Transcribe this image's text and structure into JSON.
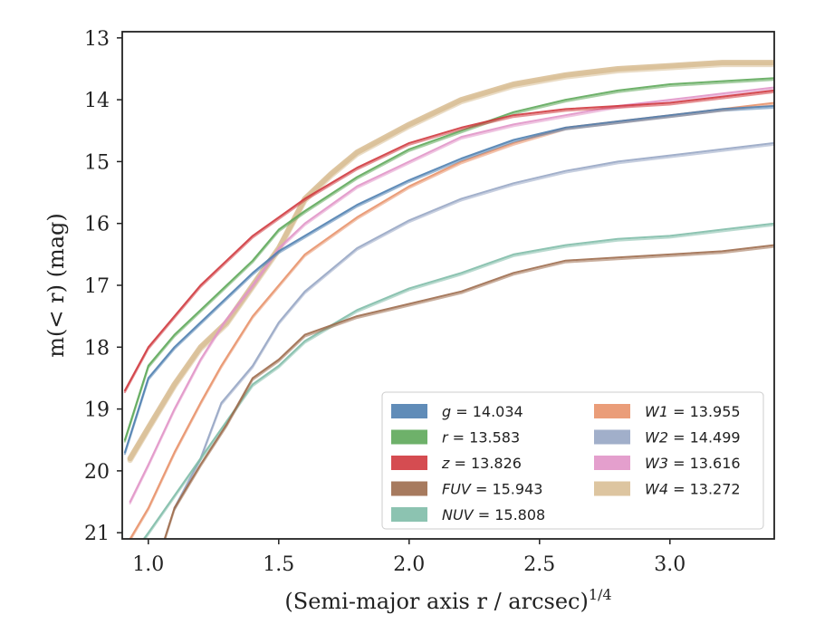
{
  "chart_data": {
    "type": "line",
    "xlabel": "(Semi-major axis r / arcsec)",
    "xlabel_sup": "1/4",
    "ylabel": "m(< r) (mag)",
    "xlim": [
      0.9,
      3.4
    ],
    "ylim": [
      21.1,
      12.9
    ],
    "y_inverted": true,
    "grid": false,
    "xticks": [
      {
        "value": 1.0,
        "label": "1.0"
      },
      {
        "value": 1.5,
        "label": "1.5"
      },
      {
        "value": 2.0,
        "label": "2.0"
      },
      {
        "value": 2.5,
        "label": "2.5"
      },
      {
        "value": 3.0,
        "label": "3.0"
      }
    ],
    "yticks": [
      {
        "value": 13,
        "label": "13"
      },
      {
        "value": 14,
        "label": "14"
      },
      {
        "value": 15,
        "label": "15"
      },
      {
        "value": 16,
        "label": "16"
      },
      {
        "value": 17,
        "label": "17"
      },
      {
        "value": 18,
        "label": "18"
      },
      {
        "value": 19,
        "label": "19"
      },
      {
        "value": 20,
        "label": "20"
      },
      {
        "value": 21,
        "label": "21"
      }
    ],
    "legend_position": "lower-right",
    "legend_columns": [
      [
        {
          "key": "g",
          "label": "g = 14.034"
        },
        {
          "key": "r",
          "label": "r = 13.583"
        },
        {
          "key": "z",
          "label": "z = 13.826"
        },
        {
          "key": "FUV",
          "label": "FUV = 15.943"
        },
        {
          "key": "NUV",
          "label": "NUV = 15.808"
        }
      ],
      [
        {
          "key": "W1",
          "label": "W1 = 13.955"
        },
        {
          "key": "W2",
          "label": "W2 = 14.499"
        },
        {
          "key": "W3",
          "label": "W3 = 13.616"
        },
        {
          "key": "W4",
          "label": "W4 = 13.272"
        }
      ]
    ],
    "series": [
      {
        "key": "W4",
        "color": "#d9bf96",
        "x": [
          0.93,
          1.0,
          1.1,
          1.2,
          1.3,
          1.4,
          1.5,
          1.6,
          1.7,
          1.8,
          2.0,
          2.2,
          2.4,
          2.6,
          2.8,
          3.0,
          3.2,
          3.4
        ],
        "y": [
          19.8,
          19.3,
          18.6,
          18.0,
          17.6,
          17.0,
          16.4,
          15.6,
          15.2,
          14.85,
          14.4,
          14.0,
          13.75,
          13.6,
          13.5,
          13.45,
          13.4,
          13.4
        ]
      },
      {
        "key": "W3",
        "color": "#e195c8",
        "x": [
          0.93,
          1.0,
          1.1,
          1.2,
          1.29,
          1.4,
          1.5,
          1.6,
          1.8,
          2.0,
          2.2,
          2.4,
          2.6,
          2.8,
          3.0,
          3.2,
          3.4
        ],
        "y": [
          20.5,
          19.9,
          19.0,
          18.2,
          17.6,
          17.0,
          16.4,
          16.0,
          15.4,
          15.0,
          14.6,
          14.4,
          14.25,
          14.1,
          14.0,
          13.9,
          13.8
        ]
      },
      {
        "key": "W1",
        "color": "#e8926a",
        "x": [
          0.93,
          1.0,
          1.1,
          1.2,
          1.28,
          1.4,
          1.5,
          1.6,
          1.8,
          2.0,
          2.2,
          2.4,
          2.6,
          2.8,
          3.0,
          3.2,
          3.4
        ],
        "y": [
          21.1,
          20.6,
          19.7,
          18.9,
          18.3,
          17.5,
          17.0,
          16.5,
          15.9,
          15.4,
          15.0,
          14.7,
          14.45,
          14.35,
          14.25,
          14.15,
          14.05
        ]
      },
      {
        "key": "W2",
        "color": "#97a6c4",
        "x": [
          1.1,
          1.2,
          1.28,
          1.4,
          1.5,
          1.6,
          1.8,
          2.0,
          2.2,
          2.4,
          2.6,
          2.8,
          3.0,
          3.2,
          3.4
        ],
        "y": [
          20.6,
          19.8,
          18.9,
          18.3,
          17.6,
          17.1,
          16.4,
          15.95,
          15.6,
          15.35,
          15.15,
          15.0,
          14.9,
          14.8,
          14.7
        ]
      },
      {
        "key": "NUV",
        "color": "#7fbca8",
        "x": [
          0.93,
          1.0,
          1.1,
          1.2,
          1.3,
          1.4,
          1.5,
          1.6,
          1.8,
          2.0,
          2.2,
          2.3,
          2.4,
          2.6,
          2.8,
          3.0,
          3.2,
          3.4
        ],
        "y": [
          21.4,
          21.0,
          20.4,
          19.8,
          19.2,
          18.6,
          18.3,
          17.9,
          17.4,
          17.05,
          16.8,
          16.65,
          16.5,
          16.35,
          16.25,
          16.2,
          16.1,
          16.0
        ]
      },
      {
        "key": "FUV",
        "color": "#9d6b4d",
        "x": [
          1.04,
          1.1,
          1.2,
          1.3,
          1.4,
          1.5,
          1.6,
          1.8,
          2.0,
          2.2,
          2.3,
          2.4,
          2.6,
          2.8,
          3.0,
          3.2,
          3.4
        ],
        "y": [
          21.4,
          20.6,
          19.9,
          19.25,
          18.5,
          18.2,
          17.8,
          17.5,
          17.3,
          17.1,
          16.95,
          16.8,
          16.6,
          16.55,
          16.5,
          16.45,
          16.35
        ]
      },
      {
        "key": "g",
        "color": "#4f7fb0",
        "x": [
          0.91,
          1.0,
          1.1,
          1.2,
          1.3,
          1.4,
          1.5,
          1.6,
          1.8,
          2.0,
          2.2,
          2.4,
          2.6,
          2.8,
          3.0,
          3.2,
          3.4
        ],
        "y": [
          19.7,
          18.5,
          18.0,
          17.6,
          17.2,
          16.8,
          16.45,
          16.2,
          15.7,
          15.3,
          14.95,
          14.65,
          14.45,
          14.35,
          14.25,
          14.15,
          14.1
        ]
      },
      {
        "key": "r",
        "color": "#5ea85a",
        "x": [
          0.91,
          1.0,
          1.1,
          1.2,
          1.3,
          1.4,
          1.5,
          1.6,
          1.8,
          2.0,
          2.2,
          2.4,
          2.6,
          2.8,
          3.0,
          3.2,
          3.4
        ],
        "y": [
          19.5,
          18.3,
          17.8,
          17.4,
          17.0,
          16.6,
          16.1,
          15.8,
          15.25,
          14.8,
          14.5,
          14.2,
          14.0,
          13.85,
          13.75,
          13.7,
          13.65
        ]
      },
      {
        "key": "z",
        "color": "#d0393e",
        "x": [
          0.91,
          1.0,
          1.1,
          1.2,
          1.3,
          1.4,
          1.5,
          1.6,
          1.8,
          2.0,
          2.2,
          2.4,
          2.6,
          2.8,
          3.0,
          3.2,
          3.4
        ],
        "y": [
          18.7,
          18.0,
          17.5,
          17.0,
          16.6,
          16.2,
          15.9,
          15.6,
          15.1,
          14.7,
          14.45,
          14.25,
          14.15,
          14.1,
          14.05,
          13.95,
          13.85
        ]
      }
    ]
  }
}
